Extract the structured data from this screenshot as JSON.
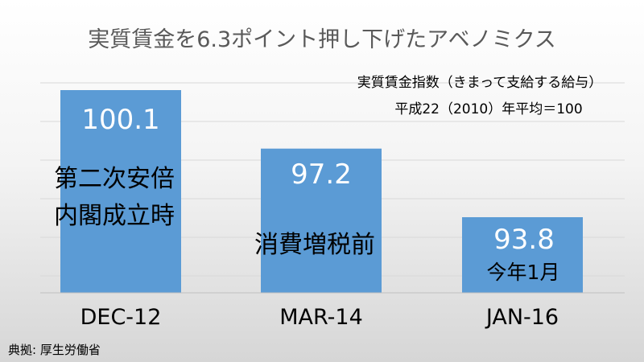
{
  "chart_data": {
    "type": "bar",
    "title": "実質賃金を6.3ポイント押し下げたアベノミクス",
    "subtitle_lines": [
      "実質賃金指数（きまって支給する給与）",
      "平成22（2010）年平均＝100"
    ],
    "categories": [
      "DEC-12",
      "MAR-14",
      "JAN-16"
    ],
    "values": [
      100.1,
      97.2,
      93.8
    ],
    "value_labels": [
      "100.1",
      "97.2",
      "93.8"
    ],
    "annotations": [
      [
        "第二次安倍",
        "内閣成立時"
      ],
      [
        "消費増税前"
      ],
      [
        "今年1月"
      ]
    ],
    "bar_color": "#5b9bd5",
    "legend": "none",
    "grid": true,
    "source": "典拠: 厚生労働省"
  }
}
